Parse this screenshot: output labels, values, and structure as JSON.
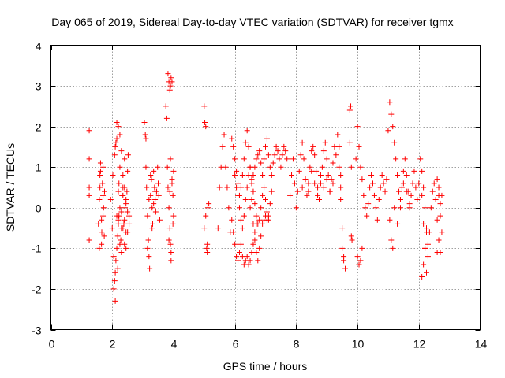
{
  "chart_data": {
    "type": "scatter",
    "title": "Day 065 of 2019, Sidereal Day-to-day VTEC variation (SDTVAR) for receiver tgmx",
    "xlabel": "GPS time / hours",
    "ylabel": "SDTVAR / TECUs",
    "xlim": [
      0,
      14
    ],
    "ylim": [
      -3,
      4
    ],
    "xticks": [
      0,
      2,
      4,
      6,
      8,
      10,
      12,
      14
    ],
    "yticks": [
      -3,
      -2,
      -1,
      0,
      1,
      2,
      3,
      4
    ],
    "xtick_labels": [
      "0",
      "2",
      "4",
      "6",
      "8",
      "10",
      "12",
      "14"
    ],
    "ytick_labels": [
      "-3",
      "-2",
      "-1",
      "0",
      "1",
      "2",
      "3",
      "4"
    ],
    "grid": true,
    "marker": "plus",
    "marker_color": "#ff0000",
    "series": [
      {
        "name": "SDTVAR",
        "x": [
          1.25,
          1.25,
          1.25,
          1.25,
          1.25,
          1.55,
          1.58,
          1.6,
          1.62,
          1.65,
          1.68,
          1.7,
          1.72,
          1.75,
          1.58,
          1.62,
          1.66,
          1.7,
          1.74,
          1.6,
          1.65,
          1.7,
          1.95,
          2.0,
          2.02,
          2.05,
          2.08,
          2.1,
          2.12,
          2.15,
          2.18,
          2.2,
          2.22,
          2.25,
          2.28,
          2.3,
          2.32,
          2.35,
          2.38,
          2.4,
          2.42,
          2.45,
          2.48,
          2.5,
          2.52,
          2.55,
          2.05,
          2.08,
          2.1,
          2.12,
          2.15,
          2.18,
          2.2,
          2.22,
          2.25,
          2.3,
          2.35,
          2.4,
          2.45,
          2.5,
          2.55,
          2.1,
          2.15,
          2.2,
          2.25,
          2.3,
          2.35,
          2.4,
          2.45,
          2.5,
          2.15,
          2.2,
          2.25,
          2.3,
          2.35,
          2.4,
          2.45,
          3.05,
          3.08,
          3.1,
          3.12,
          3.15,
          3.18,
          3.2,
          3.22,
          3.25,
          3.28,
          3.3,
          3.32,
          3.35,
          3.38,
          3.4,
          3.42,
          3.45,
          3.48,
          3.5,
          3.52,
          3.55,
          3.1,
          3.15,
          3.2,
          3.25,
          3.3,
          3.35,
          3.4,
          3.75,
          3.78,
          3.8,
          3.82,
          3.85,
          3.88,
          3.9,
          3.92,
          3.95,
          3.98,
          4.0,
          3.82,
          3.85,
          3.88,
          3.9,
          3.92,
          3.95,
          3.85,
          3.88,
          3.9,
          3.92,
          3.95,
          3.98,
          4.0,
          5.0,
          5.02,
          5.05,
          5.08,
          5.1,
          5.12,
          5.15,
          5.0,
          5.05,
          5.1,
          5.45,
          5.5,
          5.55,
          5.6,
          5.65,
          5.7,
          5.75,
          5.8,
          5.85,
          5.9,
          5.95,
          6.0,
          6.05,
          6.1,
          6.15,
          6.2,
          6.25,
          6.3,
          6.35,
          6.4,
          6.45,
          6.5,
          6.55,
          6.6,
          6.65,
          6.7,
          6.75,
          6.8,
          6.85,
          6.9,
          6.95,
          7.0,
          7.05,
          7.1,
          7.15,
          7.2,
          7.25,
          7.3,
          7.35,
          7.4,
          7.45,
          7.5,
          7.55,
          7.6,
          7.65,
          7.7,
          5.9,
          5.95,
          6.0,
          6.05,
          6.1,
          6.15,
          6.2,
          6.25,
          6.3,
          6.35,
          6.4,
          6.45,
          6.5,
          6.55,
          6.6,
          6.65,
          6.7,
          6.0,
          6.05,
          6.1,
          6.15,
          6.2,
          6.25,
          6.3,
          6.35,
          6.4,
          6.45,
          6.5,
          6.55,
          6.6,
          6.65,
          6.7,
          6.75,
          6.8,
          6.85,
          6.9,
          6.95,
          7.0,
          7.05,
          7.1,
          7.15,
          7.2,
          6.5,
          6.55,
          6.6,
          6.65,
          6.7,
          6.75,
          6.8,
          6.85,
          6.9,
          6.95,
          7.0,
          7.05,
          7.1,
          7.8,
          7.85,
          7.9,
          7.95,
          8.0,
          8.05,
          8.1,
          8.15,
          8.2,
          8.25,
          8.3,
          8.35,
          8.4,
          8.45,
          8.5,
          8.55,
          8.6,
          8.65,
          8.7,
          8.75,
          8.8,
          8.85,
          8.9,
          8.95,
          9.0,
          9.05,
          9.1,
          9.15,
          9.2,
          9.25,
          9.3,
          8.2,
          8.3,
          8.4,
          8.5,
          8.6,
          8.7,
          8.8,
          8.9,
          9.0,
          9.1,
          9.2,
          9.35,
          9.4,
          9.45,
          9.5,
          9.55,
          9.6,
          9.4,
          9.45,
          9.5,
          9.55,
          9.45,
          9.75,
          9.78,
          9.8,
          9.82,
          9.75,
          9.8,
          9.95,
          10.0,
          10.05,
          10.1,
          10.15,
          10.2,
          10.25,
          10.3,
          10.35,
          10.4,
          10.45,
          10.5,
          10.55,
          10.6,
          10.65,
          10.7,
          10.75,
          10.8,
          10.85,
          10.9,
          10.95,
          10.0,
          10.05,
          10.1,
          10.15,
          11.0,
          11.05,
          11.1,
          11.15,
          11.2,
          11.25,
          11.3,
          11.35,
          11.4,
          11.45,
          11.5,
          11.55,
          11.6,
          11.65,
          11.7,
          11.75,
          11.8,
          11.85,
          11.9,
          11.95,
          11.05,
          11.1,
          11.15,
          11.2,
          11.3,
          11.4,
          11.5,
          11.6,
          11.7,
          12.0,
          12.05,
          12.1,
          12.15,
          12.2,
          12.25,
          12.3,
          12.35,
          12.4,
          12.45,
          12.5,
          12.55,
          12.6,
          12.65,
          12.7,
          12.75,
          12.1,
          12.15,
          12.2,
          12.25,
          12.3,
          12.1,
          12.15,
          12.2,
          12.25,
          12.6,
          12.65,
          12.7,
          12.75,
          12.6,
          12.65,
          12.7
        ],
        "y": [
          1.9,
          1.2,
          0.3,
          -0.8,
          0.5,
          -0.4,
          0.2,
          0.8,
          1.1,
          -0.9,
          0.6,
          -0.2,
          0.0,
          0.4,
          -1.0,
          0.9,
          -0.6,
          0.3,
          -0.7,
          0.5,
          -0.3,
          1.0,
          0.2,
          -0.5,
          0.8,
          -1.2,
          1.3,
          -2.3,
          1.6,
          2.1,
          -1.5,
          -0.3,
          0.6,
          1.0,
          -0.8,
          -0.1,
          0.3,
          0.5,
          -0.4,
          1.2,
          0.0,
          -0.6,
          0.4,
          0.9,
          1.3,
          -0.2,
          -2.0,
          -1.8,
          -1.6,
          -1.3,
          -1.0,
          -0.7,
          -0.4,
          -0.2,
          -0.9,
          -1.1,
          -0.5,
          -0.3,
          0.2,
          -0.1,
          -0.4,
          1.5,
          1.7,
          2.0,
          1.8,
          1.4,
          0.8,
          0.5,
          0.1,
          -0.6,
          -0.2,
          0.4,
          0.0,
          -0.5,
          0.3,
          -0.9,
          -1.0,
          2.1,
          1.8,
          1.0,
          0.5,
          -0.2,
          -0.8,
          -1.2,
          -1.5,
          0.3,
          0.7,
          0.0,
          -0.4,
          0.9,
          0.5,
          0.2,
          -0.1,
          0.4,
          1.0,
          0.6,
          0.3,
          -0.3,
          1.7,
          -1.0,
          0.2,
          0.8,
          -0.5,
          0.1,
          0.4,
          2.5,
          2.2,
          1.0,
          0.5,
          0.0,
          -0.5,
          -0.9,
          -1.3,
          0.7,
          0.3,
          -0.2,
          3.3,
          3.1,
          2.9,
          3.0,
          3.2,
          3.1,
          -0.8,
          0.4,
          1.2,
          -1.1,
          0.6,
          -0.4,
          0.9,
          2.5,
          2.1,
          2.0,
          -1.0,
          -1.1,
          0.0,
          0.1,
          -0.5,
          -0.2,
          -0.9,
          -0.5,
          0.5,
          1.0,
          1.5,
          1.8,
          1.0,
          0.5,
          0.0,
          -0.6,
          1.7,
          1.5,
          1.2,
          0.9,
          0.6,
          0.3,
          0.5,
          0.8,
          1.2,
          1.6,
          1.9,
          1.5,
          1.0,
          0.6,
          0.8,
          1.0,
          1.2,
          1.3,
          1.4,
          1.1,
          0.8,
          1.2,
          1.5,
          1.7,
          1.3,
          1.0,
          0.8,
          1.1,
          1.3,
          1.5,
          1.4,
          1.2,
          1.0,
          1.3,
          1.5,
          1.4,
          1.2,
          -0.3,
          -0.6,
          -0.9,
          -1.2,
          -1.3,
          -1.1,
          -0.9,
          -1.2,
          -1.4,
          -1.3,
          -1.2,
          -1.4,
          -1.3,
          -1.1,
          -0.9,
          -0.6,
          -0.4,
          0.8,
          0.5,
          0.3,
          0.0,
          -0.3,
          -0.5,
          -0.2,
          0.2,
          0.5,
          0.8,
          1.0,
          0.7,
          0.4,
          0.1,
          -0.2,
          -0.4,
          -0.3,
          0.0,
          0.3,
          0.5,
          0.2,
          -0.1,
          -0.3,
          0.1,
          0.4,
          0.0,
          0.2,
          -0.4,
          -0.8,
          -1.1,
          -1.3,
          -1.0,
          -0.7,
          -0.4,
          -0.3,
          -0.2,
          -0.3,
          -0.2,
          0.3,
          0.8,
          1.2,
          0.6,
          0.0,
          0.4,
          0.9,
          1.3,
          1.6,
          1.2,
          0.7,
          0.3,
          0.6,
          1.0,
          1.4,
          1.5,
          1.3,
          0.9,
          0.5,
          0.2,
          0.6,
          1.0,
          1.4,
          1.6,
          1.2,
          0.8,
          0.4,
          0.7,
          1.1,
          1.5,
          1.3,
          0.5,
          0.7,
          0.4,
          0.9,
          0.6,
          0.3,
          0.8,
          0.5,
          0.7,
          0.4,
          0.6,
          1.8,
          1.0,
          0.2,
          -0.5,
          -1.2,
          -1.5,
          1.5,
          0.8,
          -1.0,
          -1.3,
          0.5,
          2.4,
          2.5,
          -0.7,
          -0.8,
          1.6,
          1.0,
          1.2,
          2.0,
          1.5,
          1.0,
          0.7,
          0.3,
          0.0,
          -0.2,
          0.1,
          0.5,
          0.8,
          0.6,
          0.3,
          0.0,
          -0.3,
          0.2,
          0.5,
          0.8,
          0.6,
          0.4,
          0.7,
          -1.2,
          -1.4,
          -1.3,
          -1.0,
          1.9,
          2.6,
          2.3,
          2.0,
          1.6,
          1.2,
          0.8,
          0.4,
          0.0,
          0.5,
          0.9,
          1.2,
          0.8,
          0.4,
          0.1,
          0.3,
          0.6,
          0.9,
          0.5,
          0.2,
          -0.3,
          -0.8,
          -1.0,
          0.0,
          -0.4,
          0.2,
          0.6,
          0.4,
          0.0,
          0.6,
          1.2,
          0.3,
          -0.4,
          -1.0,
          -1.6,
          -1.2,
          -0.6,
          0.0,
          0.4,
          0.6,
          0.2,
          -0.3,
          -0.8,
          -1.1,
          0.3,
          0.9,
          0.5,
          0.0,
          -0.5,
          -0.9,
          -1.7,
          -1.4,
          -1.0,
          -0.6,
          0.7,
          0.3,
          -0.2,
          -0.6,
          -1.1,
          0.5,
          0.1
        ]
      }
    ]
  }
}
